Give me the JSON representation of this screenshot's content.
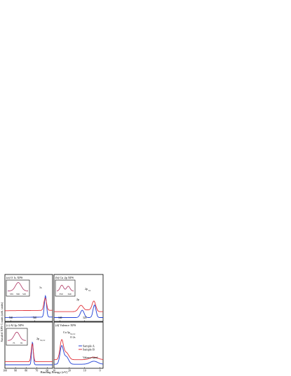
{
  "figure": {
    "ylabel": "Sacaled XPS Counts (arb. units)",
    "xlabel": "Binding Energy (eV)",
    "legend": [
      "Sample A",
      "Sample B"
    ],
    "colors": {
      "a": "#1f3fd6",
      "b": "#e0323a"
    }
  },
  "chart_data": [
    {
      "panel": "a",
      "type": "line",
      "title": "(a) O 1s XPS",
      "xlim": [
        565,
        525
      ],
      "xticks": [
        560,
        540,
        520
      ],
      "annotations": [
        {
          "text": "1s",
          "x": 531,
          "y": 0.78
        }
      ],
      "x": [
        565,
        555,
        545,
        540,
        537,
        535,
        534,
        533,
        532,
        531,
        530,
        529,
        528,
        526,
        520
      ],
      "series": [
        {
          "name": "Sample A",
          "values": [
            0.12,
            0.13,
            0.15,
            0.16,
            0.17,
            0.19,
            0.22,
            0.38,
            0.78,
            0.95,
            0.55,
            0.2,
            0.08,
            0.04,
            0.03
          ]
        },
        {
          "name": "Sample B",
          "values": [
            0.32,
            0.33,
            0.35,
            0.36,
            0.37,
            0.39,
            0.42,
            0.55,
            0.82,
            0.9,
            0.6,
            0.36,
            0.27,
            0.24,
            0.23
          ]
        }
      ],
      "inset": {
        "xticks": [
          535,
          530,
          525
        ],
        "xlim": [
          538,
          522
        ]
      }
    },
    {
      "panel": "b",
      "type": "line",
      "title": "(b) Cu 2p XPS",
      "xlim": [
        345,
        305
      ],
      "xticks": [
        340,
        320,
        300
      ],
      "annotations": [
        {
          "text": "2p1/2",
          "x": 317
        },
        {
          "text": "2p3/2",
          "x": 312
        }
      ],
      "series": [
        {
          "name": "Sample A"
        },
        {
          "name": "Sample B"
        }
      ],
      "inset": {
        "xticks": [
          350,
          340
        ],
        "xlim": [
          355,
          335
        ]
      }
    },
    {
      "panel": "c",
      "type": "line",
      "title": "(c) Al 2p XPS",
      "xlim": [
        100,
        55
      ],
      "xticks": [
        100,
        90,
        80,
        70,
        60
      ],
      "annotations": [
        {
          "text": "2p3/2,1/2",
          "x": 74
        }
      ],
      "series": [
        {
          "name": "Sample A"
        },
        {
          "name": "Sample B"
        }
      ],
      "inset": {
        "xticks": [
          75,
          70
        ],
        "xlim": [
          79,
          67
        ]
      }
    },
    {
      "panel": "d",
      "type": "line",
      "title": "(d) Valence XPS",
      "xlim": [
        30,
        -2
      ],
      "xticks": [
        30,
        20,
        10,
        0
      ],
      "annotations": [
        {
          "text": "Cu 3p3/2,1/2",
          "x": 75
        },
        {
          "text": "O 2s",
          "x": 23
        },
        {
          "text": "Valence band",
          "x": 5
        }
      ],
      "series": [
        {
          "name": "Sample A"
        },
        {
          "name": "Sample B"
        }
      ]
    }
  ]
}
